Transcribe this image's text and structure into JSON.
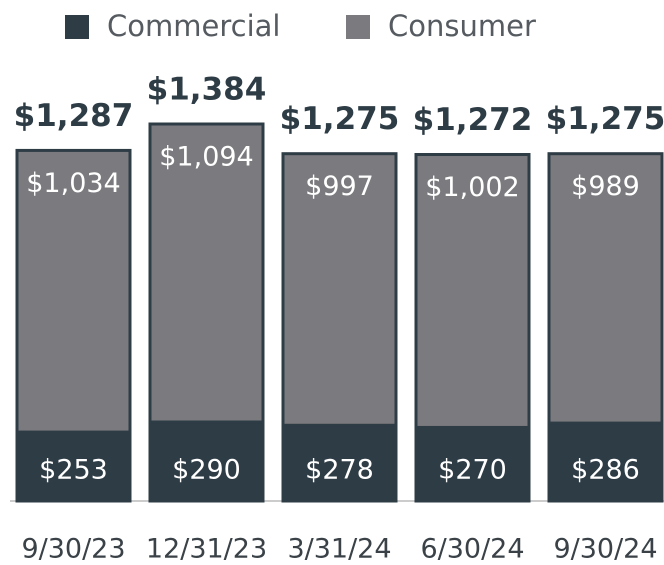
{
  "chart_data": {
    "type": "stacked-bar",
    "categories": [
      "9/30/23",
      "12/31/23",
      "3/31/24",
      "6/30/24",
      "9/30/24"
    ],
    "series": [
      {
        "name": "Commercial",
        "color": "#2e3c46",
        "values": [
          253,
          290,
          278,
          270,
          286
        ],
        "value_labels": [
          "$253",
          "$290",
          "$278",
          "$270",
          "$286"
        ]
      },
      {
        "name": "Consumer",
        "color": "#7b7a7e",
        "values": [
          1034,
          1094,
          997,
          1002,
          989
        ],
        "value_labels": [
          "$1,034",
          "$1,094",
          "$997",
          "$1,002",
          "$989"
        ]
      }
    ],
    "totals": {
      "values": [
        1287,
        1384,
        1275,
        1272,
        1275
      ],
      "value_labels": [
        "$1,287",
        "$1,384",
        "$1,275",
        "$1,272",
        "$1,275"
      ]
    }
  }
}
